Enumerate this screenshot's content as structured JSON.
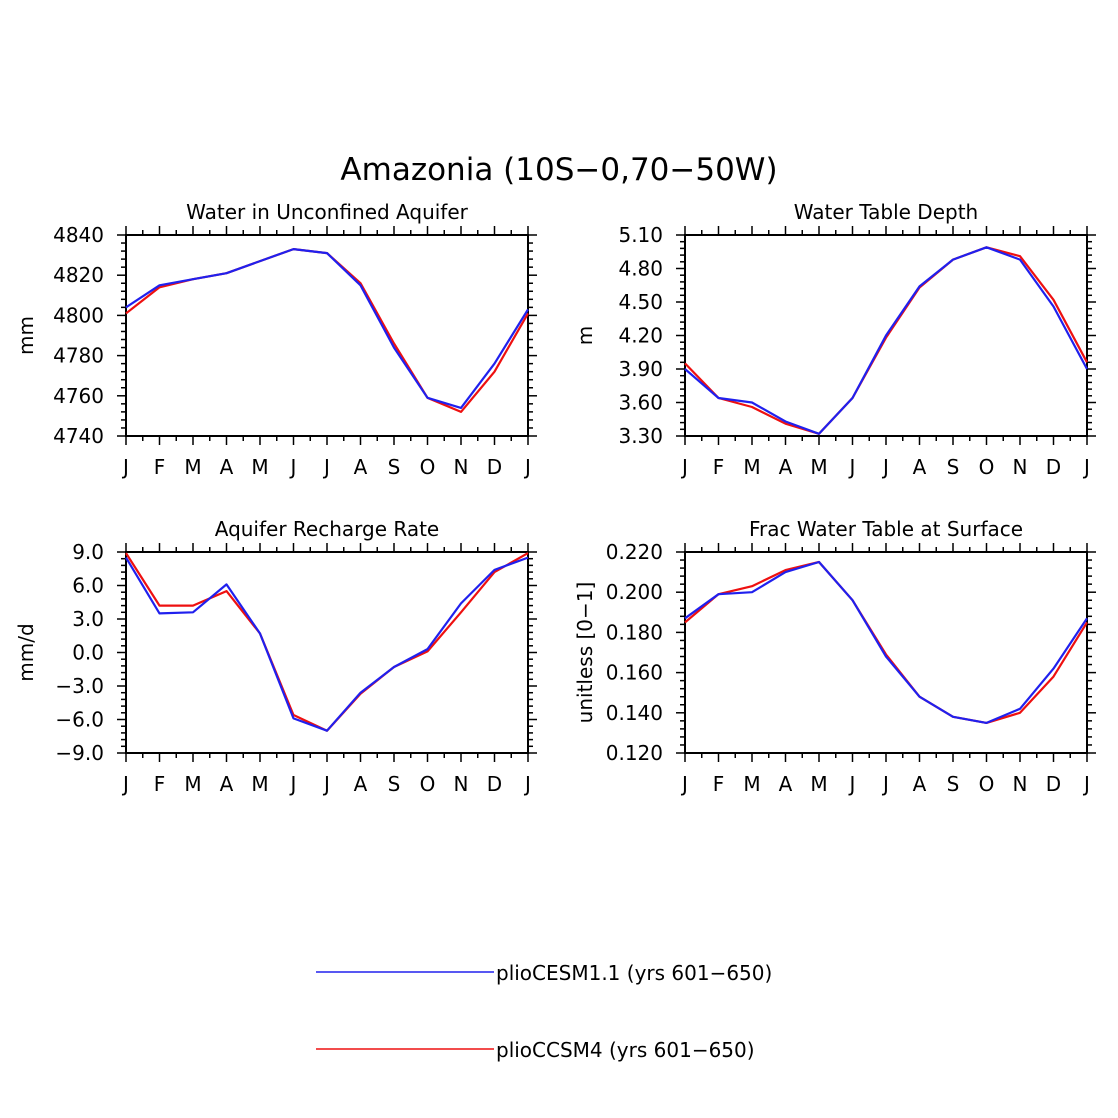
{
  "title": "Amazonia (10S−0,70−50W)",
  "months": [
    "J",
    "F",
    "M",
    "A",
    "M",
    "J",
    "J",
    "A",
    "S",
    "O",
    "N",
    "D",
    "J"
  ],
  "colors": {
    "blue": "#2020ee",
    "red": "#ee1010"
  },
  "legend": [
    {
      "label": "plioCESM1.1 (yrs 601−650)",
      "color": "#2020ee"
    },
    {
      "label": "plioCCSM4 (yrs 601−650)",
      "color": "#ee1010"
    }
  ],
  "chart_data": [
    {
      "type": "line",
      "title": "Water in Unconfined Aquifer",
      "ylabel": "mm",
      "ylim": [
        4740,
        4840
      ],
      "yticks": [
        "4740",
        "4760",
        "4780",
        "4800",
        "4820",
        "4840"
      ],
      "series": [
        {
          "name": "plioCESM1.1 (yrs 601−650)",
          "color": "#2020ee",
          "values": [
            4804,
            4815,
            4818,
            4821,
            4827,
            4833,
            4831,
            4815,
            4784,
            4759,
            4754,
            4776,
            4803
          ]
        },
        {
          "name": "plioCCSM4 (yrs 601−650)",
          "color": "#ee1010",
          "values": [
            4801,
            4814,
            4818,
            4821,
            4827,
            4833,
            4831,
            4816,
            4786,
            4759,
            4752,
            4772,
            4801
          ]
        }
      ]
    },
    {
      "type": "line",
      "title": "Water Table Depth",
      "ylabel": "m",
      "ylim": [
        3.3,
        5.1
      ],
      "yticks": [
        "3.30",
        "3.60",
        "3.90",
        "4.20",
        "4.50",
        "4.80",
        "5.10"
      ],
      "series": [
        {
          "name": "plioCESM1.1 (yrs 601−650)",
          "color": "#2020ee",
          "values": [
            3.9,
            3.64,
            3.6,
            3.43,
            3.32,
            3.64,
            4.2,
            4.64,
            4.88,
            4.99,
            4.88,
            4.46,
            3.9
          ]
        },
        {
          "name": "plioCCSM4 (yrs 601−650)",
          "color": "#ee1010",
          "values": [
            3.95,
            3.64,
            3.56,
            3.41,
            3.32,
            3.64,
            4.18,
            4.63,
            4.88,
            4.99,
            4.91,
            4.52,
            3.96
          ]
        }
      ]
    },
    {
      "type": "line",
      "title": "Aquifer Recharge Rate",
      "ylabel": "mm/d",
      "ylim": [
        -9,
        9
      ],
      "yticks": [
        "−9.0",
        "−6.0",
        "−3.0",
        "0.0",
        "3.0",
        "6.0",
        "9.0"
      ],
      "series": [
        {
          "name": "plioCESM1.1 (yrs 601−650)",
          "color": "#2020ee",
          "values": [
            8.5,
            3.5,
            3.6,
            6.1,
            1.7,
            -5.9,
            -7.0,
            -3.6,
            -1.3,
            0.3,
            4.4,
            7.4,
            8.5
          ]
        },
        {
          "name": "plioCCSM4 (yrs 601−650)",
          "color": "#ee1010",
          "values": [
            8.9,
            4.2,
            4.2,
            5.5,
            1.7,
            -5.6,
            -7.0,
            -3.7,
            -1.3,
            0.1,
            3.6,
            7.2,
            8.9
          ]
        }
      ]
    },
    {
      "type": "line",
      "title": "Frac Water Table at Surface",
      "ylabel": "unitless [0−1]",
      "ylim": [
        0.12,
        0.22
      ],
      "yticks": [
        "0.120",
        "0.140",
        "0.160",
        "0.180",
        "0.200",
        "0.220"
      ],
      "series": [
        {
          "name": "plioCESM1.1 (yrs 601−650)",
          "color": "#2020ee",
          "values": [
            0.187,
            0.199,
            0.2,
            0.21,
            0.215,
            0.196,
            0.168,
            0.148,
            0.138,
            0.135,
            0.142,
            0.162,
            0.187
          ]
        },
        {
          "name": "plioCCSM4 (yrs 601−650)",
          "color": "#ee1010",
          "values": [
            0.185,
            0.199,
            0.203,
            0.211,
            0.215,
            0.196,
            0.169,
            0.148,
            0.138,
            0.135,
            0.14,
            0.158,
            0.185
          ]
        }
      ]
    }
  ]
}
